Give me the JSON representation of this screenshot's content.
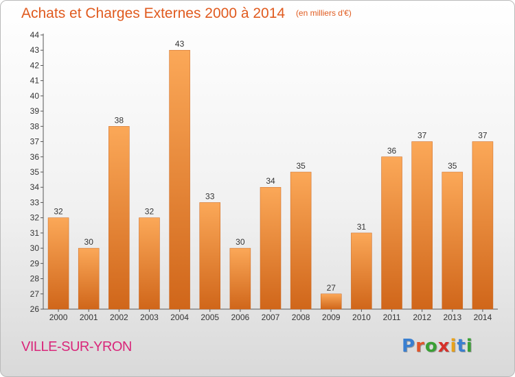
{
  "header": {
    "title": "Achats et Charges Externes 2000 à 2014",
    "unit": "(en milliers d'€)"
  },
  "footer": {
    "city": "VILLE-SUR-YRON",
    "brand_letters": [
      "P",
      "r",
      "o",
      "x",
      "i",
      "t",
      "i"
    ],
    "brand_colors": [
      "#3a7fd0",
      "#e0552b",
      "#3aa035",
      "#d6302a",
      "#e8a21c",
      "#3a7fd0",
      "#3aa035"
    ]
  },
  "colors": {
    "bar_top": "#fba858",
    "bar_bottom": "#d0661a",
    "bar_stroke": "#c9651f",
    "title": "#e05a1e",
    "city": "#d9267a"
  },
  "chart_data": {
    "type": "bar",
    "title": "Achats et Charges Externes 2000 à 2014",
    "subtitle": "(en milliers d'€)",
    "xlabel": "",
    "ylabel": "",
    "categories": [
      "2000",
      "2001",
      "2002",
      "2003",
      "2004",
      "2005",
      "2006",
      "2007",
      "2008",
      "2009",
      "2010",
      "2011",
      "2012",
      "2013",
      "2014"
    ],
    "values": [
      32,
      30,
      38,
      32,
      43,
      33,
      30,
      34,
      35,
      27,
      31,
      36,
      37,
      35,
      37
    ],
    "ylim": [
      26,
      44
    ],
    "yticks": [
      26,
      27,
      28,
      29,
      30,
      31,
      32,
      33,
      34,
      35,
      36,
      37,
      38,
      39,
      40,
      41,
      42,
      43,
      44
    ],
    "grid": false,
    "legend": "none"
  }
}
